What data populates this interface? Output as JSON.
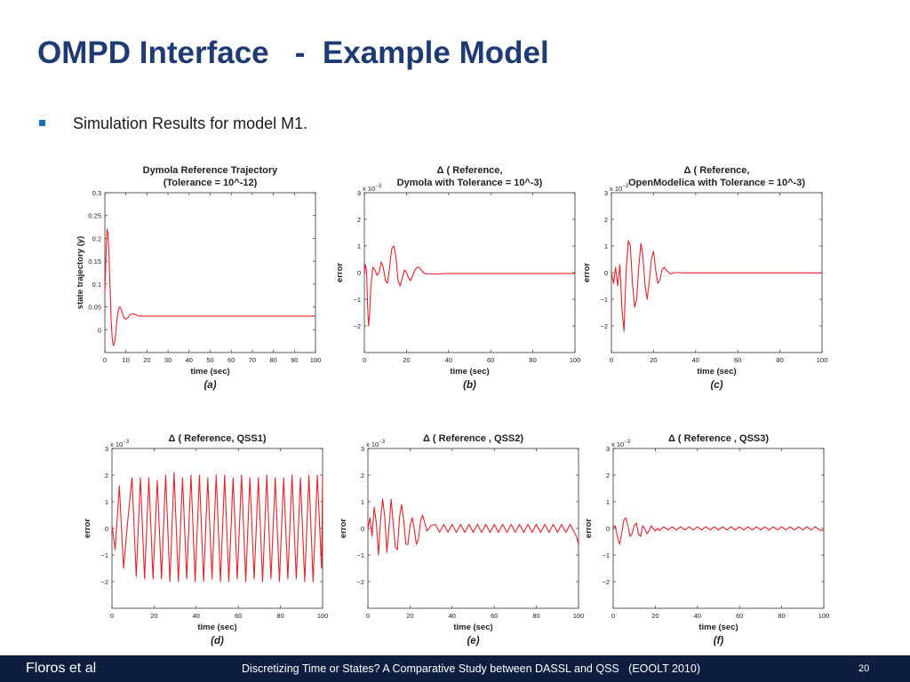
{
  "slide": {
    "title": "OMPD Interface   -  Example Model",
    "bullet": "Simulation Results for model M1.",
    "bullet_color": "#1F6FB4",
    "title_color": "#1F3B73"
  },
  "footer": {
    "left": "Floros et al",
    "center": "Discretizing Time or States? A Comparative Study between DASSL and QSS   (EOOLT 2010)",
    "page": "20"
  },
  "line_color": "#E8212B",
  "chart_data": [
    {
      "type": "line",
      "title": "Dymola Reference Trajectory\n(Tolerance = 10^-12)",
      "caption": "(a)",
      "xlabel": "time (sec)",
      "ylabel": "state trajectory (y)",
      "xlim": [
        0,
        100
      ],
      "ylim": [
        -0.05,
        0.3
      ],
      "xticks": [
        0,
        10,
        20,
        30,
        40,
        50,
        60,
        70,
        80,
        90,
        100
      ],
      "yticks": [
        0,
        0.05,
        0.1,
        0.15,
        0.2,
        0.25,
        0.3
      ],
      "yscale_label": "",
      "x": [
        0,
        0.5,
        1,
        1.5,
        2,
        2.5,
        3,
        3.5,
        4,
        4.5,
        5,
        5.5,
        6,
        6.5,
        7,
        7.5,
        8,
        8.5,
        9,
        9.5,
        10,
        11,
        12,
        13,
        14,
        15,
        16,
        18,
        20,
        25,
        30,
        40,
        50,
        60,
        70,
        80,
        90,
        100
      ],
      "y": [
        0.08,
        0.16,
        0.22,
        0.21,
        0.16,
        0.09,
        0.02,
        -0.02,
        -0.035,
        -0.03,
        -0.015,
        0.01,
        0.03,
        0.045,
        0.05,
        0.047,
        0.04,
        0.033,
        0.027,
        0.024,
        0.023,
        0.027,
        0.033,
        0.035,
        0.034,
        0.032,
        0.03,
        0.03,
        0.03,
        0.03,
        0.03,
        0.03,
        0.03,
        0.03,
        0.03,
        0.03,
        0.03,
        0.03
      ]
    },
    {
      "type": "line",
      "title": "Δ ( Reference,\nDymola with Tolerance = 10^-3)",
      "caption": "(b)",
      "xlabel": "time (sec)",
      "ylabel": "error",
      "xlim": [
        0,
        100
      ],
      "ylim": [
        -3,
        3
      ],
      "xticks": [
        0,
        20,
        40,
        60,
        80,
        100
      ],
      "yticks": [
        -2,
        -1,
        0,
        1,
        2,
        3
      ],
      "yscale_label": "x 10^-3",
      "x": [
        0,
        0.5,
        1,
        1.5,
        2,
        2.5,
        3,
        4,
        5,
        6,
        7,
        8,
        9,
        10,
        11,
        12,
        13,
        14,
        15,
        16,
        17,
        18,
        19,
        20,
        21,
        22,
        23,
        24,
        25,
        26,
        27,
        28,
        29,
        30,
        32,
        35,
        40,
        50,
        60,
        70,
        80,
        90,
        100
      ],
      "y": [
        0,
        0.3,
        0.1,
        -1.2,
        -2.0,
        -1.6,
        -0.6,
        0.2,
        0.1,
        -0.1,
        0,
        0.4,
        0.2,
        -0.3,
        -0.4,
        0.2,
        0.9,
        1.0,
        0.6,
        -0.3,
        -0.5,
        -0.2,
        0.1,
        0,
        -0.2,
        -0.3,
        -0.1,
        0.1,
        0.2,
        0.2,
        0.1,
        0,
        -0.05,
        -0.05,
        -0.05,
        -0.05,
        -0.03,
        -0.03,
        -0.03,
        -0.03,
        -0.03,
        -0.03,
        -0.03
      ]
    },
    {
      "type": "line",
      "title": "Δ ( Reference,\nOpenModelica with Tolerance = 10^-3)",
      "caption": "(c)",
      "xlabel": "time (sec)",
      "ylabel": "error",
      "xlim": [
        0,
        100
      ],
      "ylim": [
        -3,
        3
      ],
      "xticks": [
        0,
        20,
        40,
        60,
        80,
        100
      ],
      "yticks": [
        -2,
        -1,
        0,
        1,
        2,
        3
      ],
      "yscale_label": "x 10^-3",
      "x": [
        0,
        1,
        2,
        3,
        4,
        5,
        6,
        7,
        8,
        9,
        10,
        11,
        12,
        13,
        14,
        15,
        16,
        17,
        18,
        19,
        20,
        21,
        22,
        23,
        24,
        25,
        26,
        28,
        30,
        32,
        35,
        40,
        50,
        60,
        70,
        80,
        90,
        100
      ],
      "y": [
        0,
        -0.4,
        0.2,
        -0.5,
        0.3,
        -1.4,
        -2.2,
        0.1,
        1.2,
        1.0,
        -0.4,
        -1.3,
        -1.0,
        0.2,
        1.1,
        0.6,
        -0.5,
        -1.0,
        -0.3,
        0.5,
        0.8,
        0.1,
        -0.4,
        -0.3,
        0.1,
        0.2,
        0.1,
        -0.05,
        0,
        0,
        -0.01,
        -0.01,
        -0.01,
        -0.01,
        -0.01,
        -0.01,
        -0.01,
        -0.01
      ]
    },
    {
      "type": "line",
      "title": "Δ ( Reference, QSS1)",
      "caption": "(d)",
      "xlabel": "time (sec)",
      "ylabel": "error",
      "xlim": [
        0,
        100
      ],
      "ylim": [
        -3,
        3
      ],
      "xticks": [
        0,
        20,
        40,
        60,
        80,
        100
      ],
      "yticks": [
        -2,
        -1,
        0,
        1,
        2,
        3
      ],
      "yscale_label": "x 10^-3",
      "x": [
        0,
        1.5,
        3.5,
        5.5,
        7.5,
        9.5,
        11.5,
        13.5,
        15.5,
        17.5,
        19.5,
        21.5,
        23.5,
        25.5,
        27.5,
        29.5,
        31.5,
        33.5,
        35.5,
        37.5,
        39.5,
        41.5,
        43.5,
        45.5,
        47.5,
        49.5,
        51.5,
        53.5,
        55.5,
        57.5,
        59.5,
        61.5,
        63.5,
        65.5,
        67.5,
        69.5,
        71.5,
        73.5,
        75.5,
        77.5,
        79.5,
        81.5,
        83.5,
        85.5,
        87.5,
        89.5,
        91.5,
        93.5,
        95.5,
        97.5,
        99.5,
        100
      ],
      "y": [
        0.1,
        -0.8,
        1.6,
        -1.5,
        0.3,
        1.9,
        -1.8,
        1.9,
        -1.9,
        1.9,
        -1.9,
        1.8,
        -1.9,
        2.0,
        -2.0,
        2.1,
        -2.0,
        1.9,
        -1.9,
        2.0,
        -2.0,
        2.0,
        -2.0,
        1.9,
        -1.9,
        2.0,
        -2.0,
        2.0,
        -2.0,
        1.9,
        -1.9,
        2.0,
        -2.0,
        1.9,
        -1.9,
        1.9,
        -2.0,
        2.0,
        -1.9,
        1.9,
        -2.0,
        1.9,
        -1.9,
        2.0,
        -1.9,
        1.9,
        -2.0,
        2.0,
        -2.0,
        2.0,
        -1.5,
        2.0
      ]
    },
    {
      "type": "line",
      "title": "Δ ( Reference , QSS2)",
      "caption": "(e)",
      "xlabel": "time (sec)",
      "ylabel": "error",
      "xlim": [
        0,
        100
      ],
      "ylim": [
        -3,
        3
      ],
      "xticks": [
        0,
        20,
        40,
        60,
        80,
        100
      ],
      "yticks": [
        -2,
        -1,
        0,
        1,
        2,
        3
      ],
      "yscale_label": "x 10^-3",
      "x": [
        0,
        1,
        2,
        3,
        4,
        5,
        6,
        7,
        8,
        9,
        10,
        11,
        12,
        13,
        14,
        15,
        16,
        17,
        18,
        19,
        20,
        21,
        22,
        23,
        24,
        25,
        26,
        27,
        28,
        29,
        30,
        32,
        34,
        36,
        38,
        40,
        42,
        44,
        46,
        48,
        50,
        52,
        54,
        56,
        58,
        60,
        62,
        64,
        66,
        68,
        70,
        72,
        74,
        76,
        78,
        80,
        82,
        84,
        86,
        88,
        90,
        92,
        94,
        96,
        98,
        99,
        100
      ],
      "y": [
        0,
        0.4,
        -0.3,
        0.8,
        0.2,
        -1.0,
        0.3,
        1.1,
        0.4,
        -0.9,
        0,
        1.1,
        0.2,
        -0.7,
        -0.8,
        0.4,
        0.9,
        0.3,
        -0.6,
        -0.6,
        0.1,
        0.4,
        0,
        -0.6,
        -0.4,
        0.3,
        0.5,
        0.2,
        -0.1,
        0,
        0.1,
        0.15,
        -0.15,
        0.15,
        -0.15,
        0.15,
        -0.15,
        0.15,
        -0.15,
        0.15,
        -0.15,
        0.15,
        -0.15,
        0.15,
        -0.15,
        0.15,
        -0.15,
        0.15,
        -0.15,
        0.15,
        -0.15,
        0.15,
        -0.15,
        0.15,
        -0.15,
        0.15,
        -0.15,
        0.15,
        -0.15,
        0.15,
        -0.15,
        0.15,
        -0.15,
        0.15,
        -0.15,
        -0.3,
        -0.6
      ]
    },
    {
      "type": "line",
      "title": "Δ ( Reference , QSS3)",
      "caption": "(f)",
      "xlabel": "time (sec)",
      "ylabel": "error",
      "xlim": [
        0,
        100
      ],
      "ylim": [
        -3,
        3
      ],
      "xticks": [
        0,
        20,
        40,
        60,
        80,
        100
      ],
      "yticks": [
        -2,
        -1,
        0,
        1,
        2,
        3
      ],
      "yscale_label": "x 10^-3",
      "x": [
        0,
        1,
        2,
        3,
        4,
        5,
        6,
        7,
        8,
        9,
        10,
        11,
        12,
        13,
        14,
        15,
        16,
        17,
        18,
        19,
        20,
        21,
        22,
        24,
        26,
        28,
        30,
        32,
        34,
        36,
        38,
        40,
        42,
        44,
        46,
        48,
        50,
        52,
        54,
        56,
        58,
        60,
        62,
        64,
        66,
        68,
        70,
        72,
        74,
        76,
        78,
        80,
        82,
        84,
        86,
        88,
        90,
        92,
        94,
        96,
        98,
        100
      ],
      "y": [
        0,
        0.1,
        -0.3,
        -0.6,
        -0.2,
        0.3,
        0.4,
        0.1,
        -0.3,
        -0.2,
        0.1,
        0.2,
        -0.2,
        -0.3,
        0.1,
        0,
        -0.2,
        -0.1,
        0.1,
        0,
        -0.1,
        0,
        -0.08,
        0.06,
        -0.06,
        0.06,
        -0.06,
        0.06,
        -0.06,
        0.06,
        -0.06,
        0.06,
        -0.06,
        0.06,
        -0.06,
        0.06,
        -0.06,
        0.06,
        -0.06,
        0.06,
        -0.06,
        0.06,
        -0.06,
        0.06,
        -0.06,
        0.06,
        -0.06,
        0.06,
        -0.06,
        0.06,
        -0.06,
        0.06,
        -0.06,
        0.06,
        -0.06,
        0.06,
        -0.06,
        0.06,
        -0.06,
        0.06,
        -0.06,
        -0.08
      ]
    }
  ]
}
